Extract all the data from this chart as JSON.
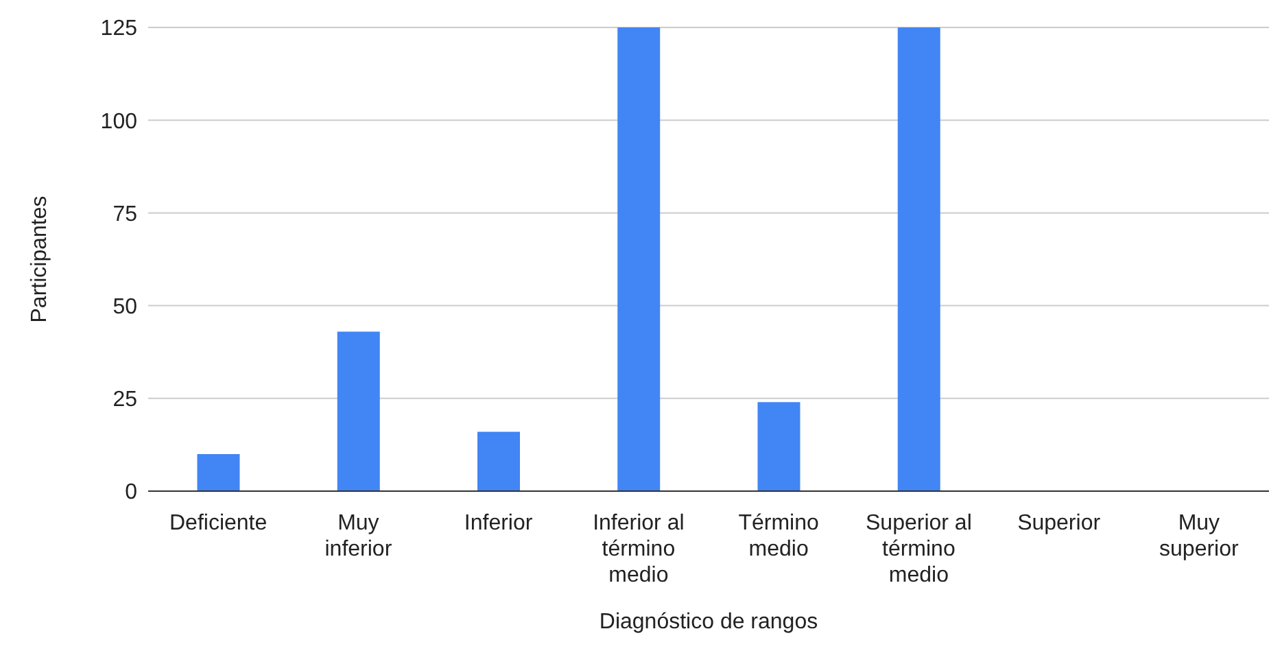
{
  "chart_data": {
    "type": "bar",
    "xlabel": "Diagnóstico de rangos",
    "ylabel": "Participantes",
    "categories": [
      "Deficiente",
      "Muy inferior",
      "Inferior",
      "Inferior al término medio",
      "Término medio",
      "Superior al término medio",
      "Superior",
      "Muy superior"
    ],
    "values": [
      10,
      43,
      16,
      125,
      24,
      125,
      0,
      0
    ],
    "color": "#4285f4",
    "ylim": [
      0,
      125
    ],
    "yticks": [
      0,
      25,
      50,
      75,
      100,
      125
    ],
    "grid": "y",
    "legend": false
  }
}
